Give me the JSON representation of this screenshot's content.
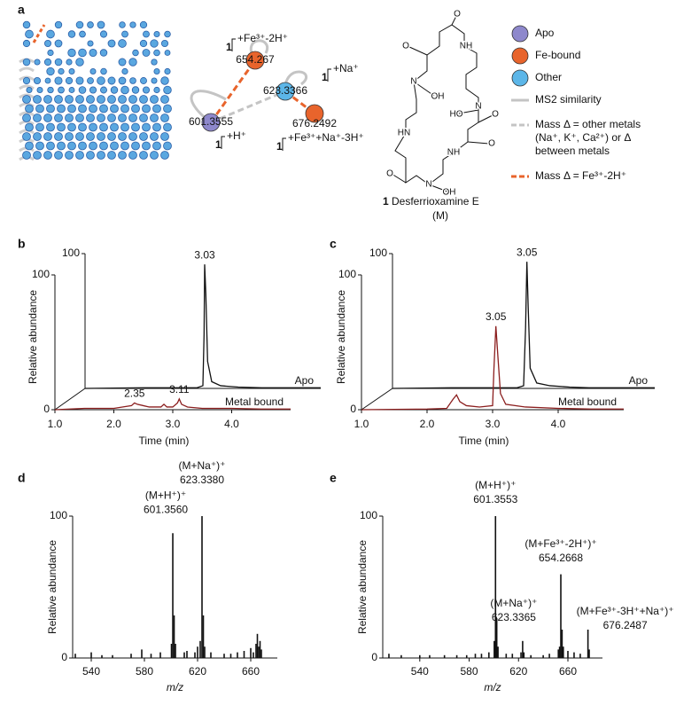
{
  "panel_labels": [
    "a",
    "b",
    "c",
    "d",
    "e"
  ],
  "network": {
    "nodes": [
      {
        "label": "601.3555",
        "group": "Apo"
      },
      {
        "label": "654.267",
        "group": "Fe-bound"
      },
      {
        "label": "623.3366",
        "group": "Other"
      },
      {
        "label": "676.2492",
        "group": "Fe-bound"
      }
    ],
    "annotations": [
      {
        "compound": "1",
        "text": "+Fe³⁺-2H⁺"
      },
      {
        "compound": "1",
        "text": "+Na⁺"
      },
      {
        "compound": "1",
        "text": "+H⁺"
      },
      {
        "compound": "1",
        "text": "+Fe³⁺+Na⁺-3H⁺"
      }
    ]
  },
  "structure": {
    "compound_number": "1",
    "name": "Desferrioxamine E",
    "abbreviation": "(M)",
    "atoms": [
      "O",
      "O",
      "NH",
      "N",
      "OH",
      "HO",
      "N",
      "O",
      "NH",
      "O",
      "N",
      "OH",
      "HN",
      "O"
    ]
  },
  "legend": {
    "nodes": [
      {
        "name": "Apo",
        "color": "#8e88cc"
      },
      {
        "name": "Fe-bound",
        "color": "#e8642c"
      },
      {
        "name": "Other",
        "color": "#5cb6e8"
      }
    ],
    "edges": [
      {
        "lines": [
          "MS2 similarity"
        ],
        "color": "#c4c4c4",
        "dashed": false
      },
      {
        "lines": [
          "Mass Δ = other metals",
          "(Na⁺,  K⁺, Ca²⁺) or Δ",
          "between metals"
        ],
        "color": "#c4c4c4",
        "dashed": true
      },
      {
        "lines": [
          "Mass Δ = Fe³⁺-2H⁺"
        ],
        "color": "#e8642c",
        "dashed": true
      }
    ]
  },
  "chart_data": [
    {
      "type": "chromatogram",
      "ylabel": "Relative abundance",
      "xlabel": "Time (min)",
      "xlim": [
        1.0,
        5.0
      ],
      "xticks": [
        {
          "value": 1,
          "label": "1.0"
        },
        {
          "value": 2,
          "label": "2.0"
        },
        {
          "value": 3,
          "label": "3.0"
        },
        {
          "value": 4,
          "label": "4.0"
        }
      ],
      "ylim": [
        0,
        100
      ],
      "yticks": [
        0,
        100
      ],
      "series": [
        {
          "name": "Apo",
          "color": "#111111",
          "x": [
            1.0,
            2.0,
            2.9,
            3.0,
            3.02,
            3.03,
            3.05,
            3.08,
            3.15,
            3.3,
            3.6,
            4.0,
            4.5,
            5.0
          ],
          "values": [
            0,
            0.5,
            0.5,
            2,
            40,
            92,
            70,
            20,
            5,
            2,
            1,
            0.5,
            0.5,
            0.5
          ]
        },
        {
          "name": "Metal bound",
          "color": "#8b1e1e",
          "x": [
            1.0,
            1.5,
            2.0,
            2.3,
            2.35,
            2.4,
            2.5,
            2.6,
            2.8,
            2.85,
            2.9,
            3.0,
            3.08,
            3.11,
            3.15,
            3.25,
            3.5,
            4.0,
            4.5,
            5.0
          ],
          "values": [
            0,
            1,
            1,
            3,
            5,
            4,
            3,
            2,
            2,
            4,
            2,
            2,
            5,
            8,
            4,
            2,
            1,
            1,
            0.5,
            0.5
          ]
        }
      ],
      "annotations": [
        {
          "series": 0,
          "x": 3.03,
          "text": "3.03"
        },
        {
          "series": 1,
          "x": 3.11,
          "text": "3.11"
        },
        {
          "series": 1,
          "x": 2.35,
          "text": "2.35"
        }
      ]
    },
    {
      "type": "chromatogram",
      "ylabel": "Relative abundance",
      "xlabel": "Time (min)",
      "xlim": [
        1.0,
        5.0
      ],
      "xticks": [
        {
          "value": 1,
          "label": "1.0"
        },
        {
          "value": 2,
          "label": "2.0"
        },
        {
          "value": 3,
          "label": "3.0"
        },
        {
          "value": 4,
          "label": "4.0"
        }
      ],
      "ylim": [
        0,
        100
      ],
      "yticks": [
        0,
        100
      ],
      "series": [
        {
          "name": "Apo",
          "color": "#111111",
          "x": [
            1.0,
            2.0,
            2.9,
            3.0,
            3.03,
            3.05,
            3.07,
            3.1,
            3.2,
            3.4,
            3.7,
            4.0,
            4.5,
            5.0
          ],
          "values": [
            0,
            0.5,
            0.5,
            2,
            45,
            94,
            60,
            15,
            4,
            2,
            1,
            0.5,
            0.5,
            0.5
          ]
        },
        {
          "name": "Metal bound",
          "color": "#8b1e1e",
          "x": [
            1.0,
            2.0,
            2.3,
            2.4,
            2.45,
            2.5,
            2.6,
            2.8,
            3.0,
            3.02,
            3.05,
            3.08,
            3.12,
            3.2,
            3.5,
            4.0,
            4.5,
            5.0
          ],
          "values": [
            0,
            0.5,
            1,
            8,
            11,
            6,
            3,
            2,
            3,
            30,
            62,
            40,
            12,
            4,
            2,
            1,
            0.5,
            0.5
          ]
        }
      ],
      "annotations": [
        {
          "series": 0,
          "x": 3.05,
          "text": "3.05"
        },
        {
          "series": 1,
          "x": 3.05,
          "text": "3.05"
        }
      ]
    },
    {
      "type": "spectrum",
      "ylabel": "Relative abundance",
      "xlabel": "m/z",
      "color": "#111111",
      "xlim": [
        526,
        680
      ],
      "xticks": [
        540,
        580,
        620,
        660
      ],
      "ylim": [
        0,
        100
      ],
      "yticks": [
        0,
        100
      ],
      "x": [
        528,
        540,
        548,
        556,
        570,
        578,
        585,
        592,
        600.35,
        601.356,
        602.36,
        603.36,
        610,
        612,
        618,
        620,
        622,
        623.338,
        624.34,
        625.34,
        630,
        640,
        645,
        650,
        655,
        660,
        662,
        664,
        665,
        666,
        667,
        668
      ],
      "values": [
        3,
        4,
        2,
        2,
        3,
        6,
        3,
        4,
        10,
        88,
        30,
        10,
        4,
        5,
        4,
        8,
        12,
        100,
        30,
        8,
        4,
        3,
        3,
        4,
        5,
        7,
        4,
        10,
        17,
        8,
        12,
        6
      ],
      "annotations": [
        {
          "x": 601.356,
          "lines": [
            "(M+H⁺)⁺",
            "601.3560"
          ]
        },
        {
          "x": 623.338,
          "lines": [
            "(M+Na⁺)⁺",
            "623.3380"
          ]
        }
      ]
    },
    {
      "type": "spectrum",
      "ylabel": "Relative abundance",
      "xlabel": "m/z",
      "color": "#111111",
      "xlim": [
        510,
        688
      ],
      "xticks": [
        540,
        580,
        620,
        660
      ],
      "ylim": [
        0,
        100
      ],
      "yticks": [
        0,
        100
      ],
      "x": [
        515,
        525,
        540,
        548,
        560,
        570,
        578,
        585,
        590,
        596,
        600.35,
        601.355,
        602.36,
        603.36,
        610,
        615,
        622,
        623.337,
        624.34,
        630,
        640,
        645,
        652.27,
        653.27,
        654.267,
        655.27,
        656.27,
        660,
        665,
        670,
        676.249,
        677.25
      ],
      "values": [
        3,
        2,
        2,
        2,
        2,
        2,
        2,
        3,
        3,
        4,
        12,
        100,
        28,
        8,
        3,
        3,
        4,
        12,
        4,
        2,
        2,
        3,
        6,
        8,
        59,
        20,
        8,
        5,
        4,
        3,
        20,
        6
      ],
      "annotations": [
        {
          "x": 601.3553,
          "lines": [
            "(M+H⁺)⁺",
            "601.3553"
          ]
        },
        {
          "x": 623.3365,
          "lines": [
            "(M+Na⁺)⁺",
            "623.3365"
          ]
        },
        {
          "x": 654.2668,
          "lines": [
            "(M+Fe³⁺-2H⁺)⁺",
            "654.2668"
          ]
        },
        {
          "x": 676.2487,
          "lines": [
            "(M+Fe³⁺-3H⁺+Na⁺)⁺",
            "676.2487"
          ]
        }
      ]
    }
  ]
}
